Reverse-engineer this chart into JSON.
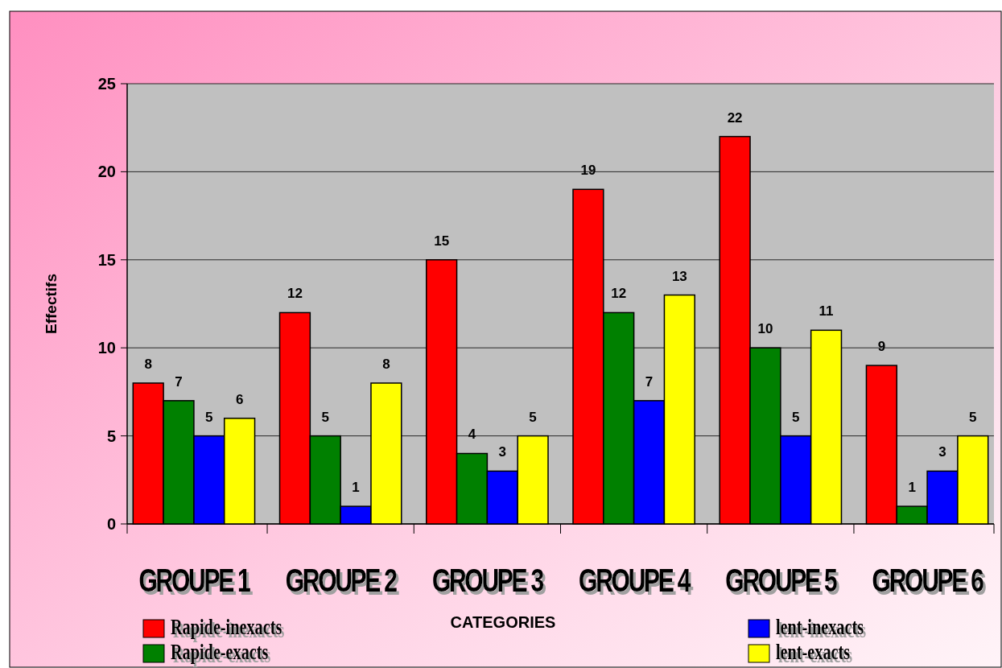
{
  "chart_data": {
    "type": "bar",
    "xlabel": "CATEGORIES",
    "ylabel": "Effectifs",
    "categories": [
      "GROUPE 1",
      "GROUPE 2",
      "GROUPE 3",
      "GROUPE 4",
      "GROUPE 5",
      "GROUPE 6"
    ],
    "series": [
      {
        "name": "Rapide-inexacts",
        "color": "#ff0000",
        "values": [
          8,
          12,
          15,
          19,
          22,
          9
        ]
      },
      {
        "name": "Rapide-exacts",
        "color": "#008000",
        "values": [
          7,
          5,
          4,
          12,
          10,
          1
        ]
      },
      {
        "name": "lent-inexacts",
        "color": "#0000ff",
        "values": [
          5,
          1,
          3,
          7,
          5,
          3
        ]
      },
      {
        "name": "lent-exacts",
        "color": "#ffff00",
        "values": [
          6,
          8,
          5,
          13,
          11,
          5
        ]
      }
    ],
    "ylim": [
      0,
      25
    ],
    "yticks": [
      0,
      5,
      10,
      15,
      20,
      25
    ],
    "grid": "y",
    "data_labels": true,
    "legend": "bottom"
  }
}
